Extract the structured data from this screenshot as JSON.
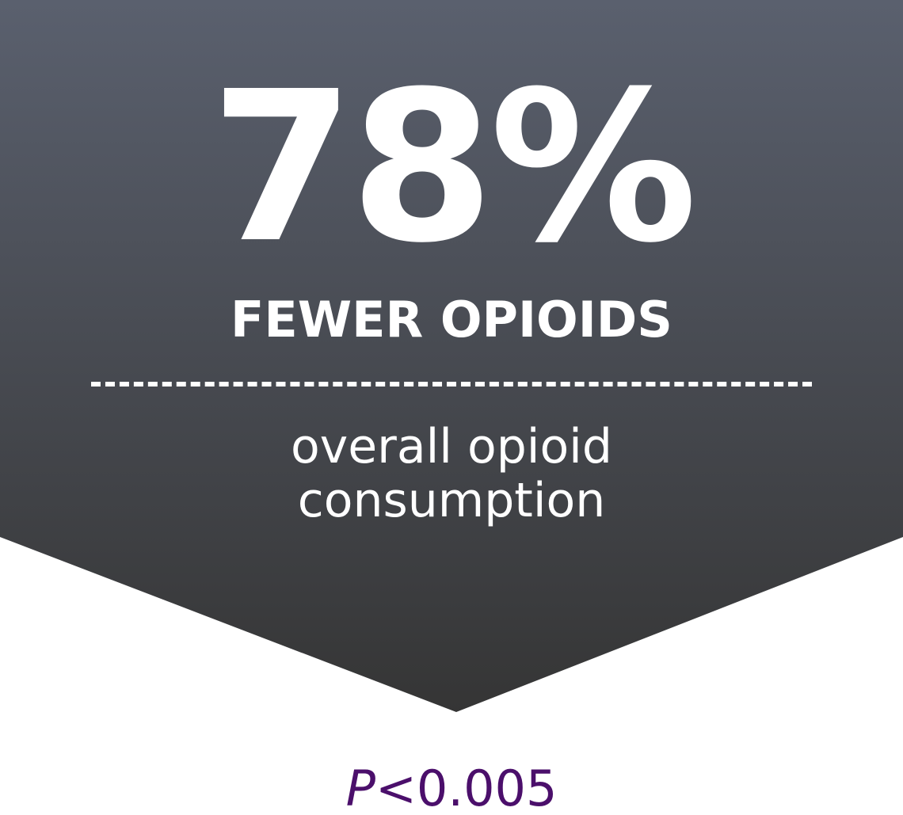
{
  "stat": {
    "value": "78%",
    "headline": "FEWER OPIOIDS",
    "description_line1": "overall opioid",
    "description_line2": "consumption"
  },
  "significance": {
    "p_letter": "P",
    "p_rest": "<0.005"
  },
  "colors": {
    "banner_top": "#5a606e",
    "banner_bottom": "#353535",
    "text": "#ffffff",
    "p_value": "#4b0f6b",
    "background": "#ffffff"
  }
}
